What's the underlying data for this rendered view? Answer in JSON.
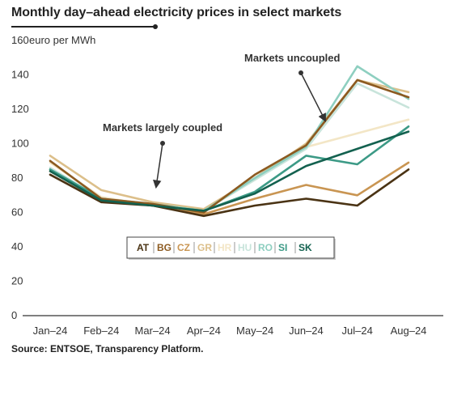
{
  "title": "Monthly day–ahead electricity prices in select markets",
  "source": "Source: ENTSOE, Transparency Platform.",
  "chart_data": {
    "type": "line",
    "title": "Monthly day–ahead electricity prices in select markets",
    "ylabel": "euro per MWh",
    "xlabel": "",
    "ylim": [
      0,
      160
    ],
    "yticks": [
      0,
      20,
      40,
      60,
      80,
      100,
      120,
      140,
      160
    ],
    "grid": false,
    "categories": [
      "Jan–24",
      "Feb–24",
      "Mar–24",
      "Apr–24",
      "May–24",
      "Jun–24",
      "Jul–24",
      "Aug–24"
    ],
    "legend_position": "center",
    "series": [
      {
        "name": "AT",
        "color": "#4a3314",
        "values": [
          82,
          66,
          64,
          58,
          64,
          68,
          64,
          85
        ]
      },
      {
        "name": "BG",
        "color": "#8c5a20",
        "values": [
          90,
          68,
          65,
          60,
          82,
          99,
          137,
          127
        ]
      },
      {
        "name": "CZ",
        "color": "#c99552",
        "values": [
          84,
          67,
          64,
          59,
          68,
          76,
          70,
          89
        ]
      },
      {
        "name": "GR",
        "color": "#dcbf8a",
        "values": [
          93,
          73,
          66,
          62,
          80,
          100,
          137,
          130
        ]
      },
      {
        "name": "HR",
        "color": "#f3e6c6",
        "values": [
          89,
          69,
          64,
          61,
          79,
          98,
          106,
          114
        ]
      },
      {
        "name": "HU",
        "color": "#c8e4db",
        "values": [
          86,
          68,
          64,
          61,
          79,
          97,
          135,
          121
        ]
      },
      {
        "name": "RO",
        "color": "#8ecfc0",
        "values": [
          85,
          68,
          65,
          61,
          80,
          98,
          145,
          126
        ]
      },
      {
        "name": "SI",
        "color": "#3c9a86",
        "values": [
          85,
          68,
          64,
          61,
          72,
          93,
          88,
          110
        ]
      },
      {
        "name": "SK",
        "color": "#13614f",
        "values": [
          84,
          67,
          64,
          61,
          71,
          87,
          97,
          107
        ]
      }
    ],
    "annotations": [
      {
        "text": "Markets largely coupled"
      },
      {
        "text": "Markets uncoupled"
      }
    ]
  }
}
